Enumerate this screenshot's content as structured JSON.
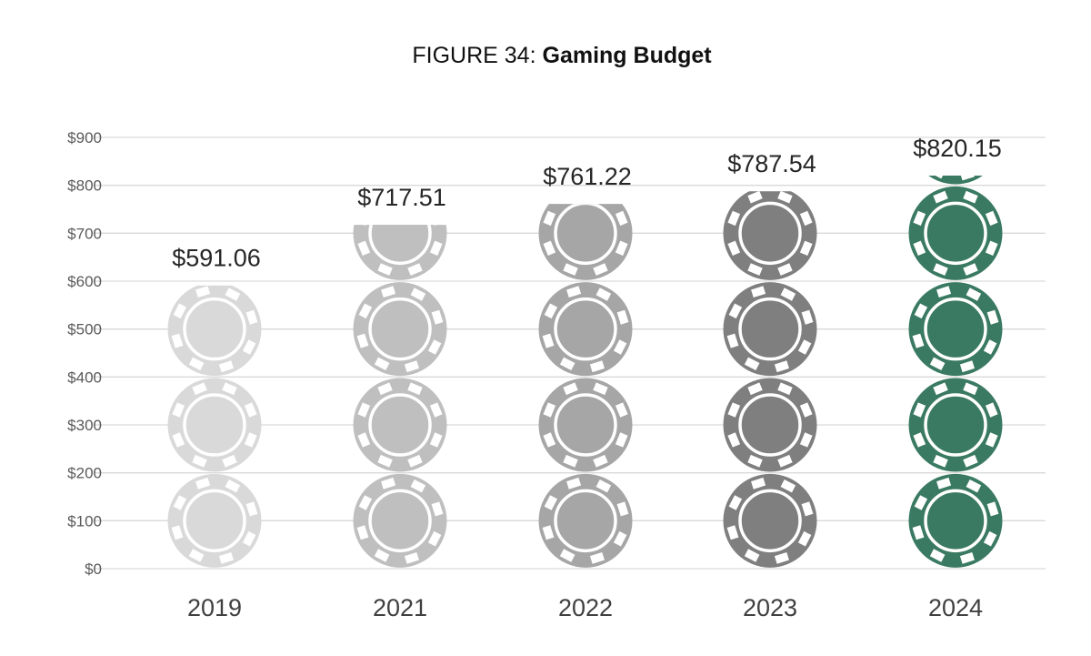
{
  "chart_data": {
    "type": "bar",
    "title_prefix": "FIGURE 34:",
    "title": "Gaming Budget",
    "xlabel": "",
    "ylabel": "",
    "categories": [
      "2019",
      "2021",
      "2022",
      "2023",
      "2024"
    ],
    "values": [
      591.06,
      717.51,
      761.22,
      787.54,
      820.15
    ],
    "data_labels": [
      "$591.06",
      "$717.51",
      "$761.22",
      "$787.54",
      "$820.15"
    ],
    "ylim": [
      0,
      900
    ],
    "yticks": [
      0,
      100,
      200,
      300,
      400,
      500,
      600,
      700,
      800,
      900
    ],
    "ytick_labels": [
      "$0",
      "$100",
      "$200",
      "$300",
      "$400",
      "$500",
      "$600",
      "$700",
      "$800",
      "$900"
    ],
    "grid": true,
    "legend": "none",
    "mark": "poker-chip-stack",
    "colors": [
      "#d9d9d9",
      "#bfbfbf",
      "#a6a6a6",
      "#7f7f7f",
      "#3a7a62"
    ]
  }
}
